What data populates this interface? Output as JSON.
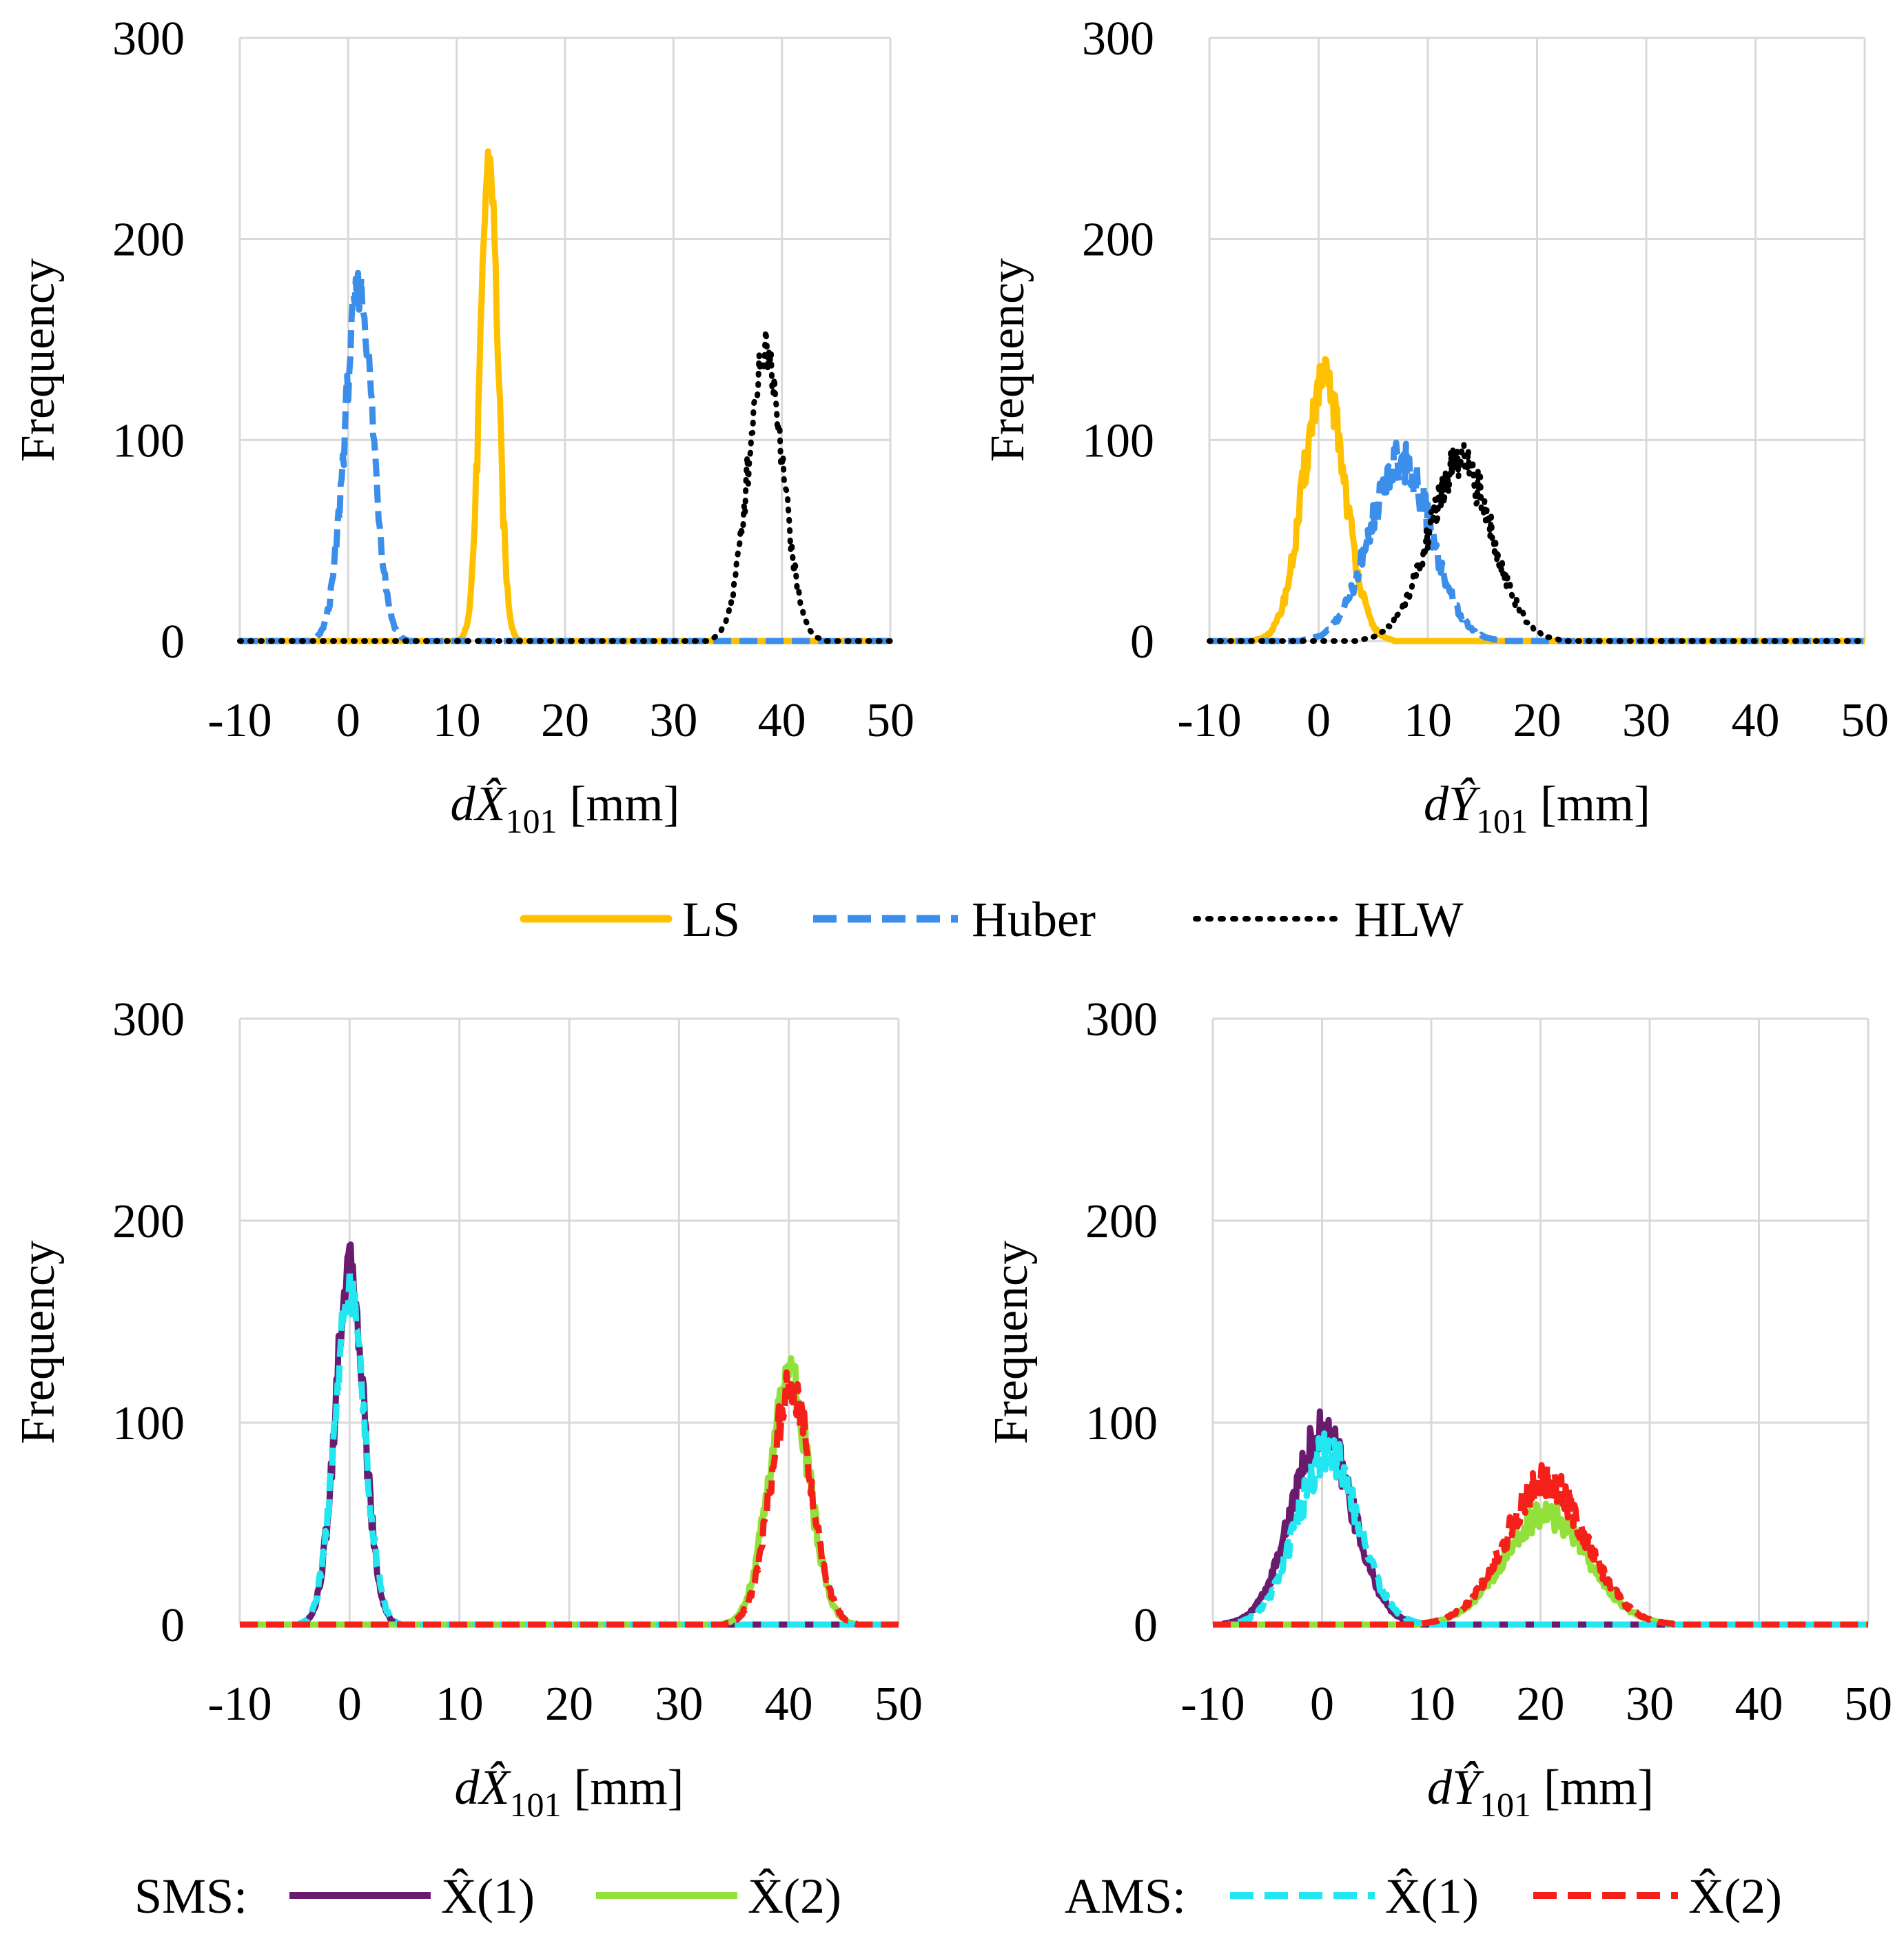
{
  "colors": {
    "LS": "#ffc000",
    "Huber": "#3b8eea",
    "HLW": "#000000",
    "SMS_X1": "#6a1b6e",
    "SMS_X2": "#92e03a",
    "AMS_X1": "#22e6f0",
    "AMS_X2": "#f5201a",
    "grid": "#d9d9d9"
  },
  "legend_top": {
    "items": [
      {
        "key": "LS",
        "label": "LS",
        "style": "solid"
      },
      {
        "key": "Huber",
        "label": "Huber",
        "style": "dashed"
      },
      {
        "key": "HLW",
        "label": "HLW",
        "style": "dotted"
      }
    ]
  },
  "legend_bottom": {
    "sms": {
      "prefix": "SMS:",
      "x1": "X̂(1)",
      "x2": "X̂(2)"
    },
    "ams": {
      "prefix": "AMS:",
      "x1": "X̂(1)",
      "x2": "X̂(2)"
    }
  },
  "chart_data": [
    {
      "id": "top-left",
      "type": "line",
      "ylabel": "Frequency",
      "xlabel": "dX̂101 [mm]",
      "xlim": [
        -10,
        50
      ],
      "ylim": [
        0,
        300
      ],
      "xticks": [
        -10,
        0,
        10,
        20,
        30,
        40,
        50
      ],
      "yticks": [
        0,
        100,
        200,
        300
      ],
      "grid": true,
      "series": [
        {
          "name": "LS",
          "style": "solid",
          "mean": 13,
          "sd": 0.8,
          "peak": 240
        },
        {
          "name": "Huber",
          "style": "dashed",
          "mean": 1,
          "sd": 1.3,
          "peak": 175
        },
        {
          "name": "HLW",
          "style": "dotted",
          "mean": 38.5,
          "sd": 1.6,
          "peak": 145
        }
      ]
    },
    {
      "id": "top-right",
      "type": "line",
      "ylabel": "Frequency",
      "xlabel": "dŶ101 [mm]",
      "xlim": [
        -10,
        50
      ],
      "ylim": [
        0,
        300
      ],
      "xticks": [
        -10,
        0,
        10,
        20,
        30,
        40,
        50
      ],
      "yticks": [
        0,
        100,
        200,
        300
      ],
      "grid": true,
      "series": [
        {
          "name": "LS",
          "style": "solid",
          "mean": 0.5,
          "sd": 1.9,
          "peak": 130
        },
        {
          "name": "Huber",
          "style": "dashed",
          "mean": 7.5,
          "sd": 2.8,
          "peak": 90
        },
        {
          "name": "HLW",
          "style": "dotted",
          "mean": 13,
          "sd": 2.9,
          "peak": 88
        }
      ]
    },
    {
      "id": "bottom-left",
      "type": "line",
      "ylabel": "Frequency",
      "xlabel": "dX̂101 [mm]",
      "xlim": [
        -10,
        50
      ],
      "ylim": [
        0,
        300
      ],
      "xticks": [
        -10,
        0,
        10,
        20,
        30,
        40,
        50
      ],
      "yticks": [
        0,
        100,
        200,
        300
      ],
      "grid": true,
      "series": [
        {
          "name": "SMS X̂(1)",
          "style": "solid",
          "mean": 0,
          "sd": 1.3,
          "peak": 178
        },
        {
          "name": "SMS X̂(2)",
          "style": "solid",
          "mean": 40,
          "sd": 1.8,
          "peak": 125
        },
        {
          "name": "AMS X̂(1)",
          "style": "dashed",
          "mean": 0,
          "sd": 1.35,
          "peak": 165
        },
        {
          "name": "AMS X̂(2)",
          "style": "dashed",
          "mean": 40.2,
          "sd": 1.8,
          "peak": 118
        }
      ]
    },
    {
      "id": "bottom-right",
      "type": "line",
      "ylabel": "Frequency",
      "xlabel": "dŶ101 [mm]",
      "xlim": [
        -10,
        50
      ],
      "ylim": [
        0,
        300
      ],
      "xticks": [
        -10,
        0,
        10,
        20,
        30,
        40,
        50
      ],
      "yticks": [
        0,
        100,
        200,
        300
      ],
      "grid": true,
      "series": [
        {
          "name": "SMS X̂(1)",
          "style": "solid",
          "mean": 0,
          "sd": 2.8,
          "peak": 95
        },
        {
          "name": "SMS X̂(2)",
          "style": "solid",
          "mean": 20.5,
          "sd": 3.8,
          "peak": 55
        },
        {
          "name": "AMS X̂(1)",
          "style": "dashed",
          "mean": 0.5,
          "sd": 2.8,
          "peak": 85
        },
        {
          "name": "AMS X̂(2)",
          "style": "dashed",
          "mean": 20.5,
          "sd": 3.7,
          "peak": 70
        }
      ]
    }
  ]
}
